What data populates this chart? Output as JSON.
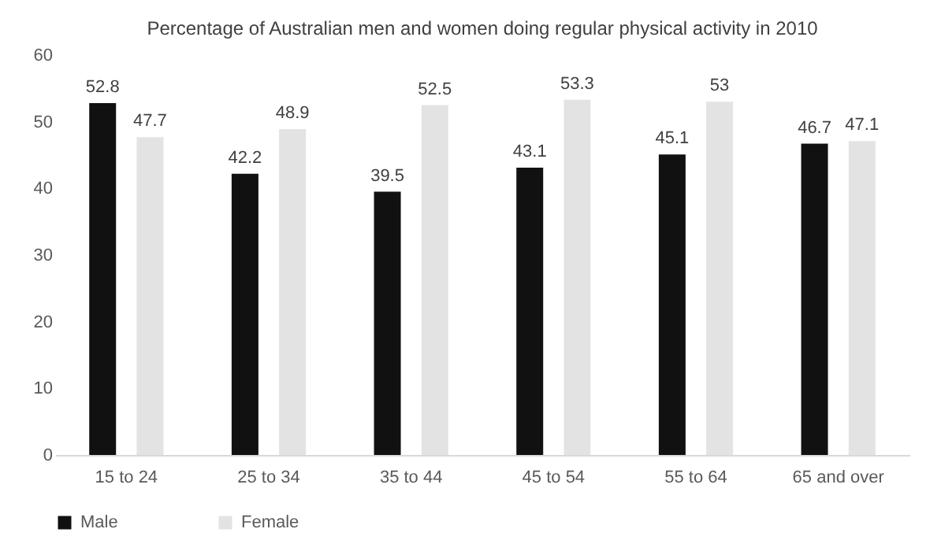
{
  "chart_data": {
    "type": "bar",
    "title": "Percentage of Australian men and women doing regular physical activity in 2010",
    "categories": [
      "15 to 24",
      "25 to 34",
      "35 to 44",
      "45 to 54",
      "55 to 64",
      "65 and over"
    ],
    "series": [
      {
        "name": "Male",
        "color": "#111111",
        "values": [
          52.8,
          42.2,
          39.5,
          43.1,
          45.1,
          46.7
        ]
      },
      {
        "name": "Female",
        "color": "#e3e3e3",
        "values": [
          47.7,
          48.9,
          52.5,
          53.3,
          53,
          47.1
        ]
      }
    ],
    "ylim": [
      0,
      60
    ],
    "yticks": [
      0,
      10,
      20,
      30,
      40,
      50,
      60
    ],
    "grid": false,
    "legend": "bottom",
    "data_labels": true
  }
}
